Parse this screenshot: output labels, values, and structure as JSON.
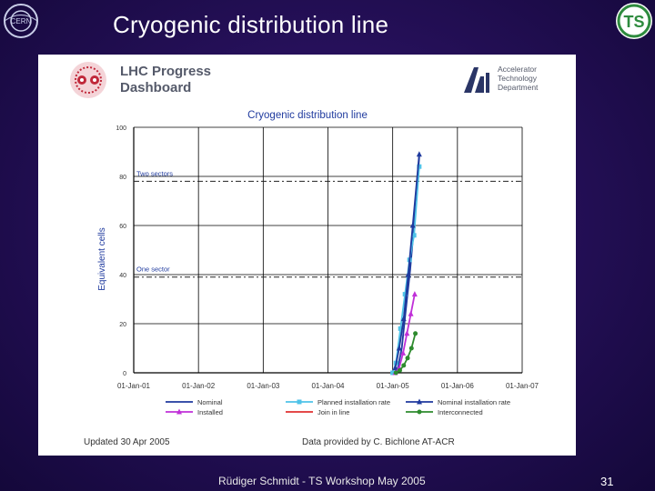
{
  "slide": {
    "title": "Cryogenic distribution line",
    "footer": "Rüdiger Schmidt - TS Workshop May 2005",
    "page_number": "31",
    "logo_left_text": "CERN",
    "logo_right_text": "TS"
  },
  "dashboard": {
    "title_line1": "LHC Progress",
    "title_line2": "Dashboard",
    "dept_line1": "Accelerator",
    "dept_line2": "Technology",
    "dept_line3": "Department",
    "updated": "Updated 30 Apr 2005",
    "data_source": "Data provided by C. Bichlone AT-ACR"
  },
  "chart_data": {
    "type": "line",
    "title": "Cryogenic distribution line",
    "xlabel": "",
    "ylabel": "Equivalent cells",
    "x_ticks": [
      "01-Jan-01",
      "01-Jan-02",
      "01-Jan-03",
      "01-Jan-04",
      "01-Jan-05",
      "01-Jan-06",
      "01-Jan-07"
    ],
    "xlim": [
      2001,
      2007
    ],
    "y_ticks": [
      "0",
      "20",
      "40",
      "60",
      "80",
      "100"
    ],
    "ylim": [
      0,
      100
    ],
    "grid": true,
    "reference_lines": [
      {
        "label": "Two sectors",
        "value": 78
      },
      {
        "label": "One sector",
        "value": 39
      }
    ],
    "series": [
      {
        "name": "Nominal",
        "color": "#1f3a9e",
        "marker": "none",
        "x": [
          2005.02,
          2005.08,
          2005.14,
          2005.2,
          2005.27,
          2005.33,
          2005.41
        ],
        "y": [
          0,
          2,
          10,
          25,
          42,
          60,
          88
        ]
      },
      {
        "name": "Planned installation rate",
        "color": "#4fc3e8",
        "marker": "square",
        "x": [
          2005.0,
          2005.05,
          2005.12,
          2005.19,
          2005.26,
          2005.33,
          2005.41
        ],
        "y": [
          0,
          4,
          18,
          32,
          46,
          56,
          84
        ]
      },
      {
        "name": "Nominal installation rate",
        "color": "#1f3a9e",
        "marker": "triangle",
        "x": [
          2005.04,
          2005.1,
          2005.17,
          2005.24,
          2005.31,
          2005.41
        ],
        "y": [
          2,
          10,
          22,
          40,
          60,
          89
        ]
      },
      {
        "name": "Installed",
        "color": "#c030d8",
        "marker": "triangle",
        "x": [
          2005.04,
          2005.1,
          2005.16,
          2005.22,
          2005.28,
          2005.34
        ],
        "y": [
          0,
          2,
          8,
          16,
          24,
          32
        ]
      },
      {
        "name": "Join in line",
        "color": "#e03030",
        "marker": "none",
        "x": [
          2005.02,
          2005.05
        ],
        "y": [
          0,
          0
        ]
      },
      {
        "name": "Interconnected",
        "color": "#2e8b2e",
        "marker": "circle",
        "x": [
          2005.05,
          2005.11,
          2005.17,
          2005.23,
          2005.29,
          2005.35
        ],
        "y": [
          0,
          1,
          3,
          6,
          10,
          16
        ]
      }
    ]
  }
}
